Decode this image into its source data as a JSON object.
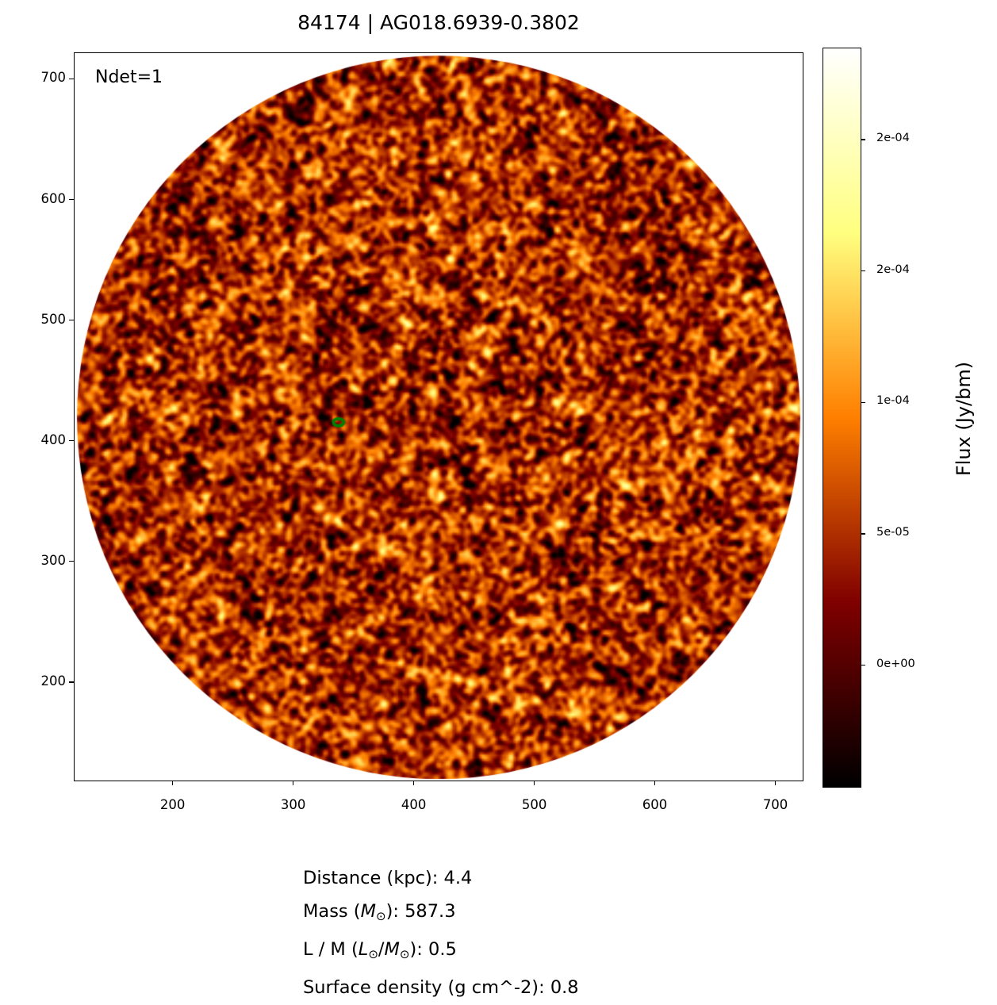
{
  "title": "84174 | AG018.6939-0.3802",
  "annotation": "Ndet=1",
  "chart_data": {
    "type": "heatmap",
    "title": "84174 | AG018.6939-0.3802",
    "colormap": "afmhot",
    "xlim": [
      118,
      722
    ],
    "ylim": [
      119,
      722
    ],
    "xticks": [
      200,
      300,
      400,
      500,
      600,
      700
    ],
    "yticks": [
      200,
      300,
      400,
      500,
      600,
      700
    ],
    "image_footprint": {
      "shape": "circle",
      "center": [
        420,
        420
      ],
      "radius": 300
    },
    "contour": {
      "color": "#008000",
      "center": [
        337,
        416
      ]
    },
    "colorbar": {
      "label": "Flux (Jy/bm)",
      "range": [
        -4.6e-05,
        0.000235
      ],
      "ticks": [
        0,
        5e-05,
        0.0001,
        0.00015,
        0.0002
      ],
      "tick_labels": [
        "0e+00",
        "5e-05",
        "1e-04",
        "2e-04",
        "2e-04"
      ]
    }
  },
  "info": [
    {
      "pre": "Distance (kpc)",
      "value": ": 4.4"
    },
    {
      "pre": "Mass (",
      "m1": "M",
      "s1": "⊙",
      "post": ")",
      "value": ": 587.3"
    },
    {
      "pre": "L / M (",
      "m1": "L",
      "s1": "⊙",
      "mid": "/",
      "m2": "M",
      "s2": "⊙",
      "post": ")",
      "value": ": 0.5"
    },
    {
      "pre": "Surface density (g cm^-2)",
      "value": ": 0.8"
    }
  ]
}
